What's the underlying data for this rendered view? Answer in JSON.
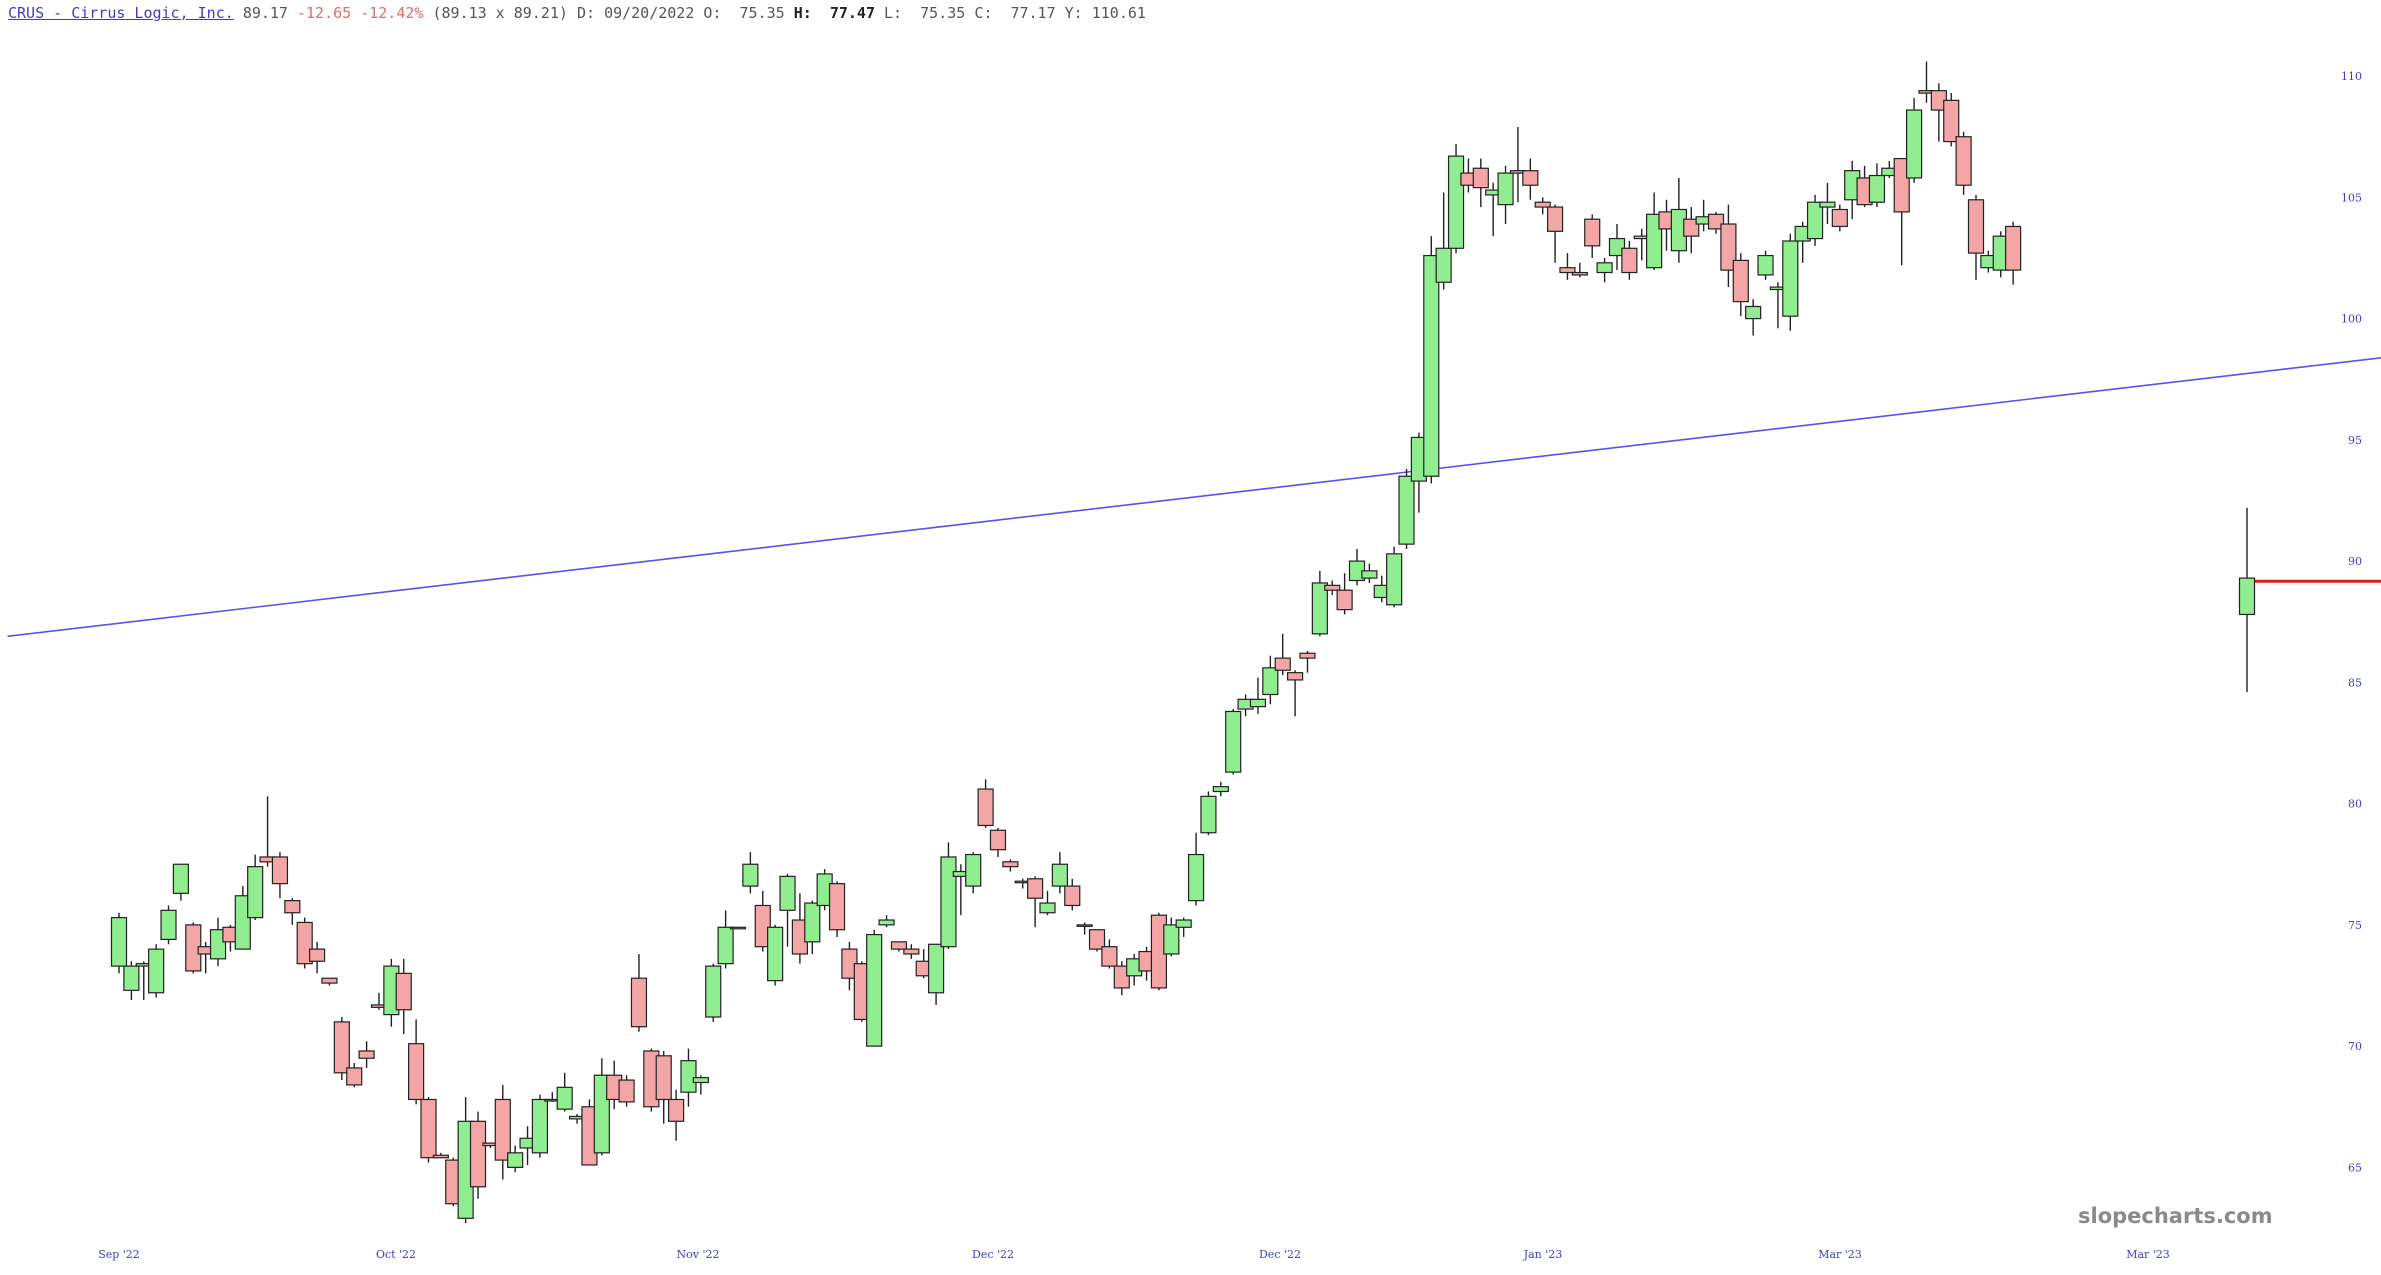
{
  "header": {
    "ticker": "CRUS - Cirrus Logic, Inc.",
    "last": "89.17",
    "change": "-12.65",
    "change_pct": "-12.42%",
    "bid_ask": "(89.13 x 89.21)",
    "date_label": "D:",
    "date": "09/20/2022",
    "open_label": "O:",
    "open": "75.35",
    "high_label": "H:",
    "high": "77.47",
    "low_label": "L:",
    "low": "75.35",
    "close_label": "C:",
    "close": "77.17",
    "y_label": "Y:",
    "y": "110.61"
  },
  "watermark": "slopecharts.com",
  "colors": {
    "up": "#90ee90",
    "down": "#f4a6a6",
    "trendline": "#5555e0",
    "price_line": "#e02020",
    "axis_text": "#3d3dc8"
  },
  "chart_data": {
    "type": "candlestick",
    "y_axis": {
      "ticks": [
        65,
        70,
        75,
        80,
        85,
        90,
        95,
        100,
        105,
        110
      ],
      "range": [
        62.5,
        111.2
      ],
      "side": "right"
    },
    "x_axis": {
      "labels": [
        "Sep '22",
        "Oct '22",
        "Nov '22",
        "Dec '22",
        "Dec '22",
        "Jan '23",
        "Mar '23",
        "Mar '23"
      ]
    },
    "trendline": {
      "from": {
        "bar": -9,
        "value": 86.9
      },
      "to": {
        "bar": 198,
        "value": 99.3
      }
    },
    "current_price_line": 89.17,
    "candles": [
      [
        73.3,
        75.3,
        75.5,
        73.0
      ],
      [
        72.3,
        73.3,
        73.5,
        71.9
      ],
      [
        73.3,
        73.4,
        73.5,
        71.9
      ],
      [
        72.2,
        74.0,
        74.2,
        72.0
      ],
      [
        74.4,
        75.6,
        75.8,
        74.2
      ],
      [
        76.3,
        77.5,
        77.5,
        76.0
      ],
      [
        75.0,
        73.1,
        75.1,
        73.0
      ],
      [
        74.1,
        73.8,
        74.3,
        73.0
      ],
      [
        73.6,
        74.8,
        75.3,
        73.3
      ],
      [
        74.9,
        74.3,
        75.0,
        73.9
      ],
      [
        74.0,
        76.2,
        76.6,
        74.0
      ],
      [
        75.3,
        77.4,
        77.9,
        75.2
      ],
      [
        77.8,
        77.6,
        80.3,
        77.4
      ],
      [
        77.8,
        76.7,
        78.0,
        76.1
      ],
      [
        76.0,
        75.5,
        76.1,
        75.0
      ],
      [
        75.1,
        73.4,
        75.3,
        73.2
      ],
      [
        74.0,
        73.5,
        74.3,
        73.0
      ],
      [
        72.8,
        72.6,
        72.8,
        72.5
      ],
      [
        71.0,
        68.9,
        71.2,
        68.6
      ],
      [
        69.1,
        68.4,
        69.3,
        68.3
      ],
      [
        69.8,
        69.5,
        70.2,
        69.1
      ],
      [
        71.7,
        71.6,
        72.2,
        71.5
      ],
      [
        71.3,
        73.3,
        73.6,
        70.8
      ],
      [
        73.0,
        71.5,
        73.6,
        70.5
      ],
      [
        70.1,
        67.8,
        71.1,
        67.6
      ],
      [
        67.8,
        65.4,
        67.9,
        65.2
      ],
      [
        65.5,
        65.4,
        65.6,
        65.4
      ],
      [
        65.3,
        63.5,
        65.4,
        63.4
      ],
      [
        62.9,
        66.9,
        67.9,
        62.7
      ],
      [
        66.9,
        64.2,
        67.3,
        63.7
      ],
      [
        66.0,
        65.9,
        66.0,
        65.8
      ],
      [
        67.8,
        65.3,
        68.4,
        64.5
      ],
      [
        65.0,
        65.6,
        65.9,
        64.8
      ],
      [
        65.8,
        66.2,
        66.7,
        65.1
      ],
      [
        65.6,
        67.8,
        68.0,
        65.4
      ],
      [
        67.8,
        67.8,
        68.1,
        67.7
      ],
      [
        67.4,
        68.3,
        68.9,
        67.3
      ],
      [
        67.0,
        67.1,
        67.2,
        66.8
      ],
      [
        67.5,
        65.1,
        67.8,
        65.1
      ],
      [
        65.6,
        68.8,
        69.5,
        65.5
      ],
      [
        68.8,
        67.8,
        69.4,
        67.4
      ],
      [
        68.6,
        67.7,
        68.8,
        67.5
      ],
      [
        72.8,
        70.8,
        73.8,
        70.6
      ],
      [
        69.8,
        67.5,
        69.9,
        67.3
      ],
      [
        69.6,
        67.8,
        69.8,
        66.8
      ],
      [
        67.8,
        66.9,
        68.2,
        66.1
      ],
      [
        68.1,
        69.4,
        69.9,
        67.5
      ],
      [
        68.5,
        68.7,
        68.8,
        68.0
      ],
      [
        71.2,
        73.3,
        73.4,
        71.0
      ],
      [
        73.4,
        74.9,
        75.6,
        73.2
      ],
      [
        74.9,
        74.9,
        74.9,
        74.9
      ],
      [
        76.6,
        77.5,
        78.0,
        76.3
      ],
      [
        75.8,
        74.1,
        76.4,
        73.9
      ],
      [
        72.7,
        74.9,
        75.0,
        72.5
      ],
      [
        75.6,
        77.0,
        77.1,
        74.1
      ],
      [
        75.2,
        73.8,
        76.3,
        73.4
      ],
      [
        74.3,
        75.9,
        76.0,
        73.8
      ],
      [
        75.8,
        77.1,
        77.3,
        75.6
      ],
      [
        76.7,
        74.8,
        76.8,
        74.5
      ],
      [
        74.0,
        72.8,
        74.3,
        72.3
      ],
      [
        73.4,
        71.1,
        73.5,
        71.0
      ],
      [
        70.0,
        74.6,
        74.8,
        70.0
      ],
      [
        75.0,
        75.2,
        75.4,
        74.9
      ],
      [
        74.3,
        74.0,
        74.3,
        73.9
      ],
      [
        74.0,
        73.8,
        74.2,
        73.6
      ],
      [
        73.5,
        72.9,
        74.0,
        72.8
      ],
      [
        72.2,
        74.2,
        74.2,
        71.7
      ],
      [
        74.1,
        77.8,
        78.4,
        74.0
      ],
      [
        77.0,
        77.2,
        77.5,
        75.4
      ],
      [
        76.6,
        77.9,
        78.0,
        76.3
      ],
      [
        80.6,
        79.1,
        81.0,
        79.0
      ],
      [
        78.9,
        78.1,
        79.0,
        77.8
      ],
      [
        77.6,
        77.4,
        77.7,
        77.2
      ],
      [
        76.8,
        76.8,
        76.9,
        76.5
      ],
      [
        76.9,
        76.1,
        77.0,
        74.9
      ],
      [
        75.5,
        75.9,
        76.4,
        75.4
      ],
      [
        76.6,
        77.5,
        78.0,
        76.3
      ],
      [
        76.6,
        75.8,
        76.9,
        75.6
      ],
      [
        75.0,
        75.0,
        75.1,
        74.6
      ],
      [
        74.8,
        74.0,
        74.8,
        73.9
      ],
      [
        74.1,
        73.3,
        74.4,
        73.2
      ],
      [
        73.3,
        72.4,
        73.5,
        72.1
      ],
      [
        72.9,
        73.6,
        73.8,
        72.5
      ],
      [
        73.9,
        73.1,
        74.1,
        72.7
      ],
      [
        75.4,
        72.4,
        75.5,
        72.3
      ],
      [
        73.8,
        75.0,
        75.3,
        73.7
      ],
      [
        74.9,
        75.2,
        75.3,
        74.5
      ],
      [
        76.0,
        77.9,
        78.8,
        75.8
      ],
      [
        78.8,
        80.3,
        80.5,
        78.7
      ],
      [
        80.5,
        80.7,
        80.9,
        80.3
      ],
      [
        81.3,
        83.8,
        83.9,
        81.2
      ],
      [
        83.9,
        84.3,
        84.5,
        83.6
      ],
      [
        84.0,
        84.3,
        85.2,
        83.7
      ],
      [
        84.5,
        85.6,
        86.1,
        84.1
      ],
      [
        86.0,
        85.5,
        87.0,
        85.3
      ],
      [
        85.4,
        85.1,
        85.5,
        83.6
      ],
      [
        86.2,
        86.0,
        86.3,
        85.4
      ],
      [
        87.0,
        89.1,
        89.6,
        86.9
      ],
      [
        89.0,
        88.8,
        89.2,
        88.6
      ],
      [
        88.8,
        88.0,
        89.5,
        87.8
      ],
      [
        89.2,
        90.0,
        90.5,
        89.0
      ],
      [
        89.3,
        89.6,
        89.9,
        89.1
      ],
      [
        88.5,
        89.0,
        89.4,
        88.3
      ],
      [
        88.2,
        90.3,
        90.6,
        88.1
      ],
      [
        90.7,
        93.5,
        93.8,
        90.5
      ],
      [
        93.3,
        95.1,
        95.3,
        92.0
      ],
      [
        93.5,
        102.6,
        103.4,
        93.2
      ],
      [
        101.5,
        102.9,
        105.2,
        101.2
      ],
      [
        102.9,
        106.7,
        107.2,
        102.7
      ],
      [
        106.0,
        105.5,
        106.6,
        105.2
      ],
      [
        106.2,
        105.4,
        106.6,
        104.6
      ],
      [
        105.1,
        105.3,
        105.6,
        103.4
      ],
      [
        104.7,
        106.0,
        106.3,
        103.9
      ],
      [
        106.1,
        106.0,
        107.9,
        104.8
      ],
      [
        106.1,
        105.5,
        106.6,
        104.9
      ],
      [
        104.8,
        104.6,
        105.0,
        104.3
      ],
      [
        104.6,
        103.6,
        104.7,
        102.3
      ],
      [
        102.1,
        101.9,
        102.7,
        101.6
      ],
      [
        101.9,
        101.8,
        102.3,
        101.7
      ],
      [
        104.1,
        103.0,
        104.3,
        102.5
      ],
      [
        101.9,
        102.3,
        102.5,
        101.5
      ],
      [
        102.6,
        103.3,
        103.9,
        102.0
      ],
      [
        102.9,
        101.9,
        103.2,
        101.6
      ],
      [
        103.3,
        103.4,
        103.7,
        102.4
      ],
      [
        102.1,
        104.3,
        105.2,
        102.0
      ],
      [
        104.4,
        103.7,
        104.9,
        102.8
      ],
      [
        102.8,
        104.5,
        105.8,
        102.3
      ],
      [
        104.1,
        103.4,
        104.6,
        102.7
      ],
      [
        103.9,
        104.2,
        104.9,
        103.6
      ],
      [
        104.3,
        103.7,
        104.4,
        103.5
      ],
      [
        103.9,
        102.0,
        104.7,
        101.3
      ],
      [
        102.4,
        100.7,
        102.7,
        100.1
      ],
      [
        100.0,
        100.5,
        100.8,
        99.3
      ],
      [
        101.8,
        102.6,
        102.8,
        101.6
      ],
      [
        101.2,
        101.3,
        101.5,
        99.6
      ],
      [
        100.1,
        103.2,
        103.5,
        99.5
      ],
      [
        103.2,
        103.8,
        104.0,
        102.3
      ],
      [
        103.3,
        104.8,
        105.1,
        103.0
      ],
      [
        104.6,
        104.8,
        105.6,
        103.9
      ],
      [
        104.5,
        103.8,
        104.7,
        103.6
      ],
      [
        104.9,
        106.1,
        106.5,
        104.1
      ],
      [
        105.8,
        104.7,
        106.3,
        104.6
      ],
      [
        104.8,
        105.9,
        106.4,
        104.6
      ],
      [
        105.9,
        106.2,
        106.5,
        105.8
      ],
      [
        106.6,
        104.4,
        106.6,
        102.2
      ],
      [
        105.8,
        108.6,
        109.1,
        105.6
      ],
      [
        109.4,
        109.3,
        110.6,
        108.9
      ],
      [
        109.4,
        108.6,
        109.7,
        107.3
      ],
      [
        109.0,
        107.3,
        109.3,
        107.1
      ],
      [
        107.5,
        105.5,
        107.7,
        105.1
      ],
      [
        104.9,
        102.7,
        105.1,
        101.6
      ],
      [
        102.1,
        102.6,
        102.8,
        101.9
      ],
      [
        102.0,
        103.4,
        103.6,
        101.7
      ],
      [
        103.8,
        102.0,
        104.0,
        101.4
      ],
      [
        87.8,
        89.3,
        92.2,
        84.6
      ]
    ]
  }
}
